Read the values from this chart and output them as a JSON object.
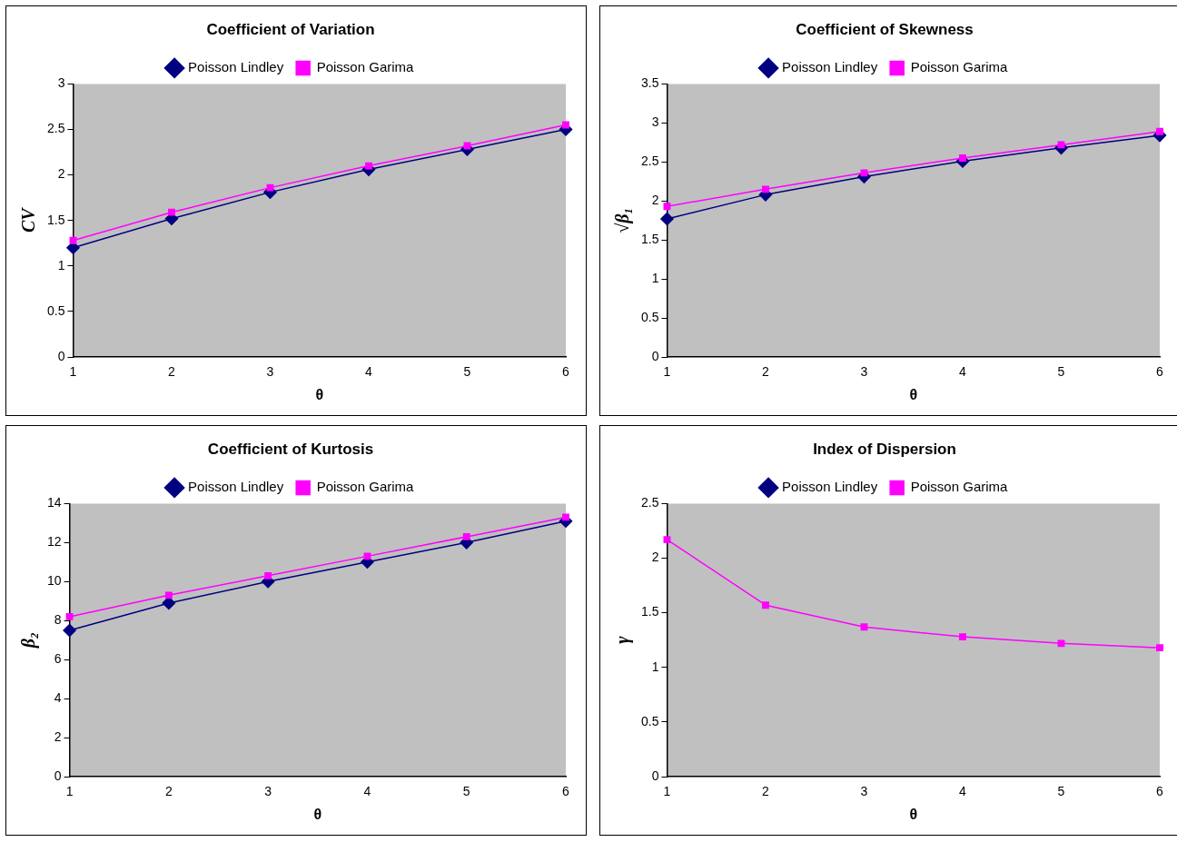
{
  "chart_data": [
    {
      "type": "line",
      "title": "Coefficient of Variation",
      "xlabel": "θ",
      "ylabel": "CV",
      "categories": [
        "1",
        "2",
        "3",
        "4",
        "5",
        "6"
      ],
      "ylim": [
        0,
        3
      ],
      "yticks": [
        0,
        0.5,
        1,
        1.5,
        2,
        2.5,
        3
      ],
      "grid": false,
      "legend": "top",
      "series": [
        {
          "name": "Poisson Lindley",
          "color": "#000080",
          "marker": "diamond",
          "values": [
            1.2,
            1.52,
            1.81,
            2.06,
            2.28,
            2.5
          ]
        },
        {
          "name": "Poisson Garima",
          "color": "#ff00ff",
          "marker": "square",
          "values": [
            1.28,
            1.59,
            1.86,
            2.1,
            2.32,
            2.55
          ]
        }
      ]
    },
    {
      "type": "line",
      "title": "Coefficient of Skewness",
      "xlabel": "θ",
      "ylabel": "√β₁",
      "categories": [
        "1",
        "2",
        "3",
        "4",
        "5",
        "6"
      ],
      "ylim": [
        0,
        3.5
      ],
      "yticks": [
        0,
        0.5,
        1,
        1.5,
        2,
        2.5,
        3,
        3.5
      ],
      "grid": false,
      "legend": "top",
      "series": [
        {
          "name": "Poisson Lindley",
          "color": "#000080",
          "marker": "diamond",
          "values": [
            1.77,
            2.08,
            2.31,
            2.51,
            2.68,
            2.84
          ]
        },
        {
          "name": "Poisson Garima",
          "color": "#ff00ff",
          "marker": "square",
          "values": [
            1.93,
            2.15,
            2.36,
            2.55,
            2.72,
            2.89
          ]
        }
      ]
    },
    {
      "type": "line",
      "title": "Coefficient of Kurtosis",
      "xlabel": "θ",
      "ylabel": "β₂",
      "categories": [
        "1",
        "2",
        "3",
        "4",
        "5",
        "6"
      ],
      "ylim": [
        0,
        14
      ],
      "yticks": [
        0,
        2,
        4,
        6,
        8,
        10,
        12,
        14
      ],
      "grid": false,
      "legend": "top",
      "series": [
        {
          "name": "Poisson Lindley",
          "color": "#000080",
          "marker": "diamond",
          "values": [
            7.5,
            8.9,
            10.0,
            11.0,
            12.0,
            13.1
          ]
        },
        {
          "name": "Poisson Garima",
          "color": "#ff00ff",
          "marker": "square",
          "values": [
            8.2,
            9.3,
            10.3,
            11.3,
            12.3,
            13.3
          ]
        }
      ]
    },
    {
      "type": "line",
      "title": "Index of Dispersion",
      "xlabel": "θ",
      "ylabel": "γ",
      "categories": [
        "1",
        "2",
        "3",
        "4",
        "5",
        "6"
      ],
      "ylim": [
        0,
        2.5
      ],
      "yticks": [
        0,
        0.5,
        1,
        1.5,
        2,
        2.5
      ],
      "grid": false,
      "legend": "top",
      "series": [
        {
          "name": "Poisson Lindley",
          "color": "#000080",
          "marker": "diamond",
          "values": [
            null,
            null,
            null,
            null,
            null,
            null
          ]
        },
        {
          "name": "Poisson Garima",
          "color": "#ff00ff",
          "marker": "square",
          "values": [
            2.17,
            1.57,
            1.37,
            1.28,
            1.22,
            1.18
          ]
        }
      ]
    }
  ]
}
